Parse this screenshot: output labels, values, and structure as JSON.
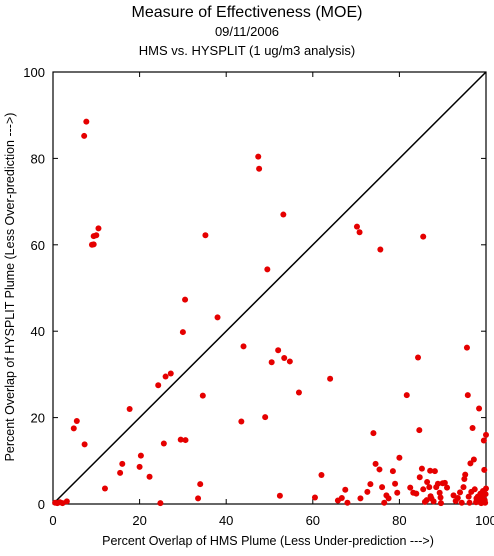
{
  "chart_data": {
    "type": "scatter",
    "title": "Measure of Effectiveness (MOE)",
    "subtitle_date": "09/11/2006",
    "subtitle_comparison": "HMS vs. HYSPLIT  (1 ug/m3 analysis)",
    "xlabel": "Percent Overlap of HMS Plume (Less Under-prediction --->)",
    "ylabel": "Percent Overlap of HYSPLIT Plume (Less Over-prediction --->)",
    "xlim": [
      0,
      100
    ],
    "ylim": [
      0,
      100
    ],
    "xticks": [
      0,
      20,
      40,
      60,
      80,
      100
    ],
    "yticks": [
      0,
      20,
      40,
      60,
      80,
      100
    ],
    "grid": false,
    "reference_line": {
      "from": [
        0,
        0
      ],
      "to": [
        100,
        100
      ],
      "color": "#000000"
    },
    "marker_color": "#e50000",
    "points": [
      [
        0.5,
        0.3
      ],
      [
        1.0,
        0.2
      ],
      [
        1.6,
        0.4
      ],
      [
        3.2,
        0.6
      ],
      [
        2.2,
        0.2
      ],
      [
        4.8,
        17.5
      ],
      [
        5.5,
        19.2
      ],
      [
        7.3,
        13.8
      ],
      [
        7.2,
        85.2
      ],
      [
        7.7,
        88.5
      ],
      [
        9.0,
        60.0
      ],
      [
        9.4,
        60.1
      ],
      [
        9.4,
        62.0
      ],
      [
        10.0,
        62.2
      ],
      [
        10.5,
        63.8
      ],
      [
        12.0,
        3.6
      ],
      [
        15.5,
        7.2
      ],
      [
        16.0,
        9.3
      ],
      [
        17.7,
        22.0
      ],
      [
        20.0,
        8.6
      ],
      [
        20.3,
        11.2
      ],
      [
        22.3,
        6.3
      ],
      [
        24.3,
        27.5
      ],
      [
        24.8,
        0.2
      ],
      [
        25.6,
        14.0
      ],
      [
        26.0,
        29.5
      ],
      [
        27.2,
        30.2
      ],
      [
        29.5,
        14.9
      ],
      [
        30.0,
        39.8
      ],
      [
        30.5,
        47.3
      ],
      [
        30.6,
        14.8
      ],
      [
        33.5,
        1.3
      ],
      [
        34.0,
        4.6
      ],
      [
        34.6,
        25.1
      ],
      [
        35.2,
        62.2
      ],
      [
        38.0,
        43.2
      ],
      [
        43.5,
        19.1
      ],
      [
        44.0,
        36.5
      ],
      [
        47.4,
        80.4
      ],
      [
        47.6,
        77.6
      ],
      [
        49.0,
        20.1
      ],
      [
        49.5,
        54.3
      ],
      [
        50.5,
        32.8
      ],
      [
        52.0,
        35.6
      ],
      [
        52.4,
        1.9
      ],
      [
        53.2,
        67.0
      ],
      [
        53.4,
        33.8
      ],
      [
        54.7,
        33.0
      ],
      [
        56.8,
        25.8
      ],
      [
        60.5,
        1.5
      ],
      [
        62.0,
        6.7
      ],
      [
        64.0,
        29.0
      ],
      [
        65.8,
        0.8
      ],
      [
        66.7,
        1.4
      ],
      [
        67.5,
        3.3
      ],
      [
        68.0,
        0.3
      ],
      [
        70.2,
        64.2
      ],
      [
        70.8,
        62.9
      ],
      [
        71.0,
        1.3
      ],
      [
        72.6,
        2.8
      ],
      [
        73.3,
        4.6
      ],
      [
        74.0,
        16.4
      ],
      [
        74.5,
        9.3
      ],
      [
        75.4,
        8.0
      ],
      [
        75.6,
        58.9
      ],
      [
        76.0,
        3.9
      ],
      [
        76.5,
        0.3
      ],
      [
        77.0,
        2.0
      ],
      [
        77.5,
        1.3
      ],
      [
        78.5,
        7.6
      ],
      [
        79.0,
        4.7
      ],
      [
        79.5,
        2.6
      ],
      [
        80.0,
        10.7
      ],
      [
        81.7,
        25.2
      ],
      [
        82.5,
        3.8
      ],
      [
        83.2,
        2.6
      ],
      [
        83.9,
        2.4
      ],
      [
        84.3,
        33.9
      ],
      [
        84.6,
        17.1
      ],
      [
        84.7,
        6.2
      ],
      [
        85.2,
        8.2
      ],
      [
        85.5,
        61.9
      ],
      [
        85.5,
        3.4
      ],
      [
        85.9,
        0.5
      ],
      [
        86.3,
        0.9
      ],
      [
        86.4,
        5.1
      ],
      [
        86.9,
        3.9
      ],
      [
        87.1,
        7.7
      ],
      [
        87.2,
        1.8
      ],
      [
        87.4,
        1.3
      ],
      [
        87.9,
        0.6
      ],
      [
        88.2,
        7.6
      ],
      [
        88.5,
        3.9
      ],
      [
        88.9,
        4.7
      ],
      [
        89.3,
        2.6
      ],
      [
        89.5,
        1.5
      ],
      [
        89.6,
        0.2
      ],
      [
        90.0,
        4.8
      ],
      [
        90.5,
        4.9
      ],
      [
        91.0,
        3.8
      ],
      [
        92.5,
        2.0
      ],
      [
        93.0,
        0.7
      ],
      [
        93.5,
        1.4
      ],
      [
        94.0,
        2.7
      ],
      [
        94.4,
        0.3
      ],
      [
        94.8,
        3.9
      ],
      [
        95.0,
        5.8
      ],
      [
        95.2,
        6.8
      ],
      [
        95.6,
        36.2
      ],
      [
        95.8,
        25.2
      ],
      [
        96.0,
        1.7
      ],
      [
        96.2,
        0.3
      ],
      [
        96.4,
        9.4
      ],
      [
        96.6,
        2.8
      ],
      [
        96.9,
        17.6
      ],
      [
        97.2,
        10.3
      ],
      [
        97.4,
        3.4
      ],
      [
        97.7,
        0.4
      ],
      [
        98.1,
        1.7
      ],
      [
        98.4,
        22.1
      ],
      [
        98.7,
        2.4
      ],
      [
        98.9,
        0.2
      ],
      [
        99.1,
        1.6
      ],
      [
        99.3,
        3.0
      ],
      [
        99.5,
        14.7
      ],
      [
        99.6,
        7.9
      ],
      [
        99.7,
        0.9
      ],
      [
        99.8,
        0.3
      ],
      [
        99.9,
        2.3
      ],
      [
        100.0,
        16.0
      ],
      [
        100.0,
        3.6
      ],
      [
        99.2,
        0.6
      ],
      [
        98.5,
        1.0
      ],
      [
        97.8,
        1.3
      ]
    ]
  }
}
